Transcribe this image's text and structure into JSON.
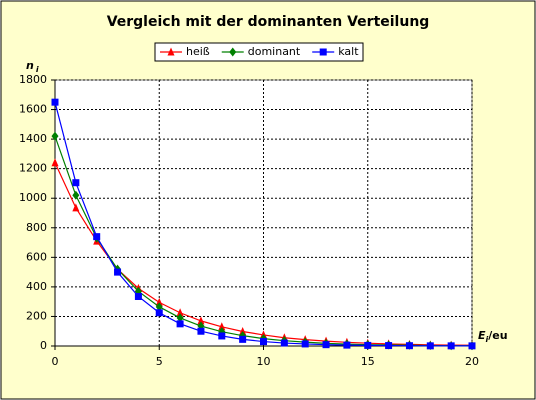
{
  "chart_data": {
    "type": "line",
    "title": "Vergleich mit der dominanten Verteilung",
    "y_label": {
      "main": "n",
      "sub": "i"
    },
    "x_label": {
      "main": "E",
      "sub": "i",
      "unit": "/eu"
    },
    "x": [
      0,
      1,
      2,
      3,
      4,
      5,
      6,
      7,
      8,
      9,
      10,
      11,
      12,
      13,
      14,
      15,
      16,
      17,
      18,
      19,
      20
    ],
    "series": [
      {
        "name": "heiß",
        "color": "#ff0000",
        "marker": "triangle",
        "values": [
          1240,
          935,
          710,
          520,
          390,
          295,
          225,
          170,
          130,
          98,
          75,
          56,
          43,
          33,
          25,
          19,
          14,
          11,
          8,
          6,
          5
        ]
      },
      {
        "name": "dominant",
        "color": "#008000",
        "marker": "diamond",
        "values": [
          1420,
          1020,
          730,
          520,
          370,
          265,
          190,
          135,
          97,
          70,
          50,
          36,
          26,
          18,
          13,
          9,
          7,
          5,
          3,
          2,
          2
        ]
      },
      {
        "name": "kalt",
        "color": "#0000ff",
        "marker": "square",
        "values": [
          1650,
          1105,
          740,
          500,
          335,
          225,
          150,
          100,
          68,
          45,
          30,
          20,
          14,
          9,
          6,
          4,
          3,
          2,
          1,
          1,
          1
        ]
      }
    ],
    "xlim": [
      0,
      20
    ],
    "xticks": [
      0,
      5,
      10,
      15,
      20
    ],
    "ylim": [
      0,
      1800
    ],
    "yticks": [
      0,
      200,
      400,
      600,
      800,
      1000,
      1200,
      1400,
      1600,
      1800
    ],
    "grid": true,
    "legend": "top"
  }
}
